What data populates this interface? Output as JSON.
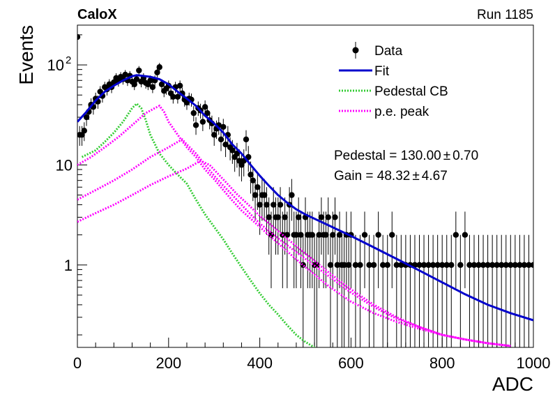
{
  "header": {
    "left_label": "CaloX",
    "right_label": "Run 1185"
  },
  "chart_data": {
    "type": "scatter",
    "title": "",
    "xlabel": "ADC",
    "ylabel": "Events",
    "xlim": [
      0,
      1000
    ],
    "ylim": [
      0.15,
      250
    ],
    "y_scale": "log",
    "x_ticks": [
      "0",
      "200",
      "400",
      "600",
      "800",
      "1000"
    ],
    "y_ticks": [
      {
        "value": 1,
        "label": "1"
      },
      {
        "value": 10,
        "label": "10"
      },
      {
        "value": 100,
        "label": "10",
        "sup": "2"
      }
    ],
    "grid": false,
    "legend_position": "top-right",
    "legend": [
      {
        "label": "Data",
        "style": "marker",
        "color": "#000000"
      },
      {
        "label": "Fit",
        "style": "line",
        "color": "#0000cc"
      },
      {
        "label": "Pedestal CB",
        "style": "dotted",
        "color": "#33cc33"
      },
      {
        "label": "p.e. peak",
        "style": "dotted",
        "color": "#ff00ff"
      }
    ],
    "annotations": [
      {
        "text": "Pedestal = 130.00",
        "pm": "±",
        "err": "0.70"
      },
      {
        "text": "Gain = 48.32",
        "pm": "±",
        "err": "4.67"
      }
    ],
    "series": [
      {
        "name": "Data",
        "kind": "points",
        "color": "#000000",
        "points": [
          [
            0,
            190
          ],
          [
            5,
            20
          ],
          [
            10,
            20
          ],
          [
            15,
            22
          ],
          [
            20,
            30
          ],
          [
            25,
            34
          ],
          [
            30,
            40
          ],
          [
            35,
            38
          ],
          [
            40,
            46
          ],
          [
            45,
            43
          ],
          [
            50,
            54
          ],
          [
            55,
            49
          ],
          [
            60,
            60
          ],
          [
            65,
            57
          ],
          [
            70,
            64
          ],
          [
            75,
            60
          ],
          [
            80,
            67
          ],
          [
            85,
            74
          ],
          [
            90,
            69
          ],
          [
            95,
            76
          ],
          [
            100,
            72
          ],
          [
            105,
            80
          ],
          [
            110,
            70
          ],
          [
            115,
            78
          ],
          [
            120,
            68
          ],
          [
            125,
            64
          ],
          [
            130,
            72
          ],
          [
            135,
            88
          ],
          [
            140,
            68
          ],
          [
            145,
            74
          ],
          [
            150,
            66
          ],
          [
            155,
            64
          ],
          [
            160,
            70
          ],
          [
            165,
            60
          ],
          [
            170,
            70
          ],
          [
            175,
            84
          ],
          [
            180,
            95
          ],
          [
            185,
            64
          ],
          [
            190,
            55
          ],
          [
            195,
            58
          ],
          [
            200,
            62
          ],
          [
            205,
            52
          ],
          [
            210,
            48
          ],
          [
            215,
            60
          ],
          [
            220,
            48
          ],
          [
            225,
            62
          ],
          [
            230,
            52
          ],
          [
            235,
            45
          ],
          [
            240,
            42
          ],
          [
            245,
            46
          ],
          [
            250,
            45
          ],
          [
            255,
            33
          ],
          [
            260,
            25
          ],
          [
            265,
            37
          ],
          [
            270,
            35
          ],
          [
            275,
            27
          ],
          [
            280,
            38
          ],
          [
            285,
            33
          ],
          [
            290,
            28
          ],
          [
            295,
            26
          ],
          [
            300,
            20
          ],
          [
            305,
            23
          ],
          [
            310,
            25
          ],
          [
            315,
            18
          ],
          [
            320,
            24
          ],
          [
            325,
            16
          ],
          [
            330,
            20
          ],
          [
            335,
            15
          ],
          [
            340,
            14
          ],
          [
            345,
            12
          ],
          [
            350,
            13
          ],
          [
            355,
            11
          ],
          [
            360,
            10
          ],
          [
            365,
            11
          ],
          [
            370,
            18
          ],
          [
            375,
            12
          ],
          [
            380,
            8
          ],
          [
            385,
            7
          ],
          [
            390,
            5
          ],
          [
            395,
            6
          ],
          [
            400,
            4
          ],
          [
            405,
            5
          ],
          [
            410,
            5
          ],
          [
            415,
            4
          ],
          [
            420,
            3
          ],
          [
            425,
            2
          ],
          [
            430,
            4
          ],
          [
            435,
            3
          ],
          [
            440,
            3
          ],
          [
            445,
            4
          ],
          [
            450,
            2
          ],
          [
            455,
            3
          ],
          [
            460,
            2
          ],
          [
            465,
            4
          ],
          [
            470,
            5
          ],
          [
            475,
            2
          ],
          [
            480,
            2
          ],
          [
            485,
            3
          ],
          [
            490,
            2
          ],
          [
            495,
            1
          ],
          [
            500,
            3
          ],
          [
            505,
            2
          ],
          [
            510,
            2
          ],
          [
            515,
            2
          ],
          [
            520,
            1
          ],
          [
            525,
            1
          ],
          [
            530,
            2
          ],
          [
            535,
            3
          ],
          [
            540,
            2
          ],
          [
            545,
            2
          ],
          [
            550,
            3
          ],
          [
            555,
            1
          ],
          [
            560,
            2
          ],
          [
            565,
            3
          ],
          [
            570,
            1
          ],
          [
            575,
            2
          ],
          [
            580,
            1
          ],
          [
            585,
            1
          ],
          [
            590,
            2
          ],
          [
            595,
            1
          ],
          [
            600,
            2
          ],
          [
            610,
            1
          ],
          [
            620,
            1
          ],
          [
            630,
            2
          ],
          [
            640,
            1
          ],
          [
            650,
            1
          ],
          [
            660,
            2
          ],
          [
            670,
            1
          ],
          [
            680,
            1
          ],
          [
            690,
            2
          ],
          [
            700,
            1
          ],
          [
            710,
            1
          ],
          [
            720,
            1
          ],
          [
            730,
            1
          ],
          [
            740,
            1
          ],
          [
            750,
            1
          ],
          [
            760,
            1
          ],
          [
            770,
            1
          ],
          [
            780,
            1
          ],
          [
            790,
            1
          ],
          [
            800,
            1
          ],
          [
            810,
            1
          ],
          [
            820,
            1
          ],
          [
            830,
            2
          ],
          [
            840,
            1
          ],
          [
            850,
            2
          ],
          [
            860,
            1
          ],
          [
            870,
            1
          ],
          [
            880,
            1
          ],
          [
            890,
            1
          ],
          [
            900,
            1
          ],
          [
            910,
            1
          ],
          [
            920,
            1
          ],
          [
            930,
            1
          ],
          [
            940,
            1
          ],
          [
            950,
            1
          ],
          [
            960,
            1
          ],
          [
            970,
            1
          ],
          [
            980,
            1
          ],
          [
            990,
            1
          ],
          [
            1000,
            1
          ]
        ]
      },
      {
        "name": "Fit",
        "kind": "line",
        "color": "#0000cc",
        "points": [
          [
            0,
            27
          ],
          [
            20,
            34
          ],
          [
            40,
            44
          ],
          [
            60,
            54
          ],
          [
            80,
            62
          ],
          [
            100,
            70
          ],
          [
            120,
            77
          ],
          [
            130,
            79
          ],
          [
            140,
            78
          ],
          [
            160,
            76
          ],
          [
            180,
            72
          ],
          [
            200,
            64
          ],
          [
            220,
            54
          ],
          [
            240,
            46
          ],
          [
            260,
            39
          ],
          [
            280,
            31
          ],
          [
            300,
            26
          ],
          [
            320,
            21
          ],
          [
            340,
            16
          ],
          [
            360,
            13
          ],
          [
            380,
            10
          ],
          [
            400,
            7.8
          ],
          [
            420,
            6.2
          ],
          [
            440,
            5.0
          ],
          [
            460,
            4.2
          ],
          [
            480,
            3.6
          ],
          [
            500,
            3.2
          ],
          [
            550,
            2.5
          ],
          [
            600,
            1.95
          ],
          [
            650,
            1.5
          ],
          [
            700,
            1.15
          ],
          [
            750,
            0.88
          ],
          [
            800,
            0.67
          ],
          [
            850,
            0.51
          ],
          [
            900,
            0.4
          ],
          [
            950,
            0.33
          ],
          [
            1000,
            0.28
          ]
        ]
      },
      {
        "name": "Pedestal CB",
        "kind": "dotted",
        "color": "#33cc33",
        "points": [
          [
            10,
            12
          ],
          [
            40,
            14
          ],
          [
            60,
            17
          ],
          [
            80,
            21
          ],
          [
            100,
            27
          ],
          [
            120,
            37
          ],
          [
            130,
            41
          ],
          [
            140,
            37
          ],
          [
            150,
            28
          ],
          [
            160,
            20
          ],
          [
            180,
            13
          ],
          [
            200,
            10
          ],
          [
            220,
            8
          ],
          [
            240,
            6.5
          ],
          [
            260,
            4.5
          ],
          [
            280,
            3.2
          ],
          [
            300,
            2.4
          ],
          [
            320,
            1.8
          ],
          [
            340,
            1.3
          ],
          [
            360,
            0.95
          ],
          [
            380,
            0.7
          ],
          [
            400,
            0.52
          ],
          [
            420,
            0.4
          ],
          [
            440,
            0.32
          ],
          [
            460,
            0.25
          ],
          [
            480,
            0.2
          ],
          [
            500,
            0.17
          ],
          [
            520,
            0.15
          ]
        ]
      },
      {
        "name": "p.e. peak 1",
        "kind": "dotted",
        "color": "#ff00ff",
        "points": [
          [
            0,
            10
          ],
          [
            30,
            12
          ],
          [
            60,
            15
          ],
          [
            90,
            19
          ],
          [
            120,
            25
          ],
          [
            150,
            33
          ],
          [
            170,
            37
          ],
          [
            180,
            39
          ],
          [
            190,
            34
          ],
          [
            200,
            27
          ],
          [
            220,
            20
          ],
          [
            240,
            15
          ],
          [
            260,
            12
          ],
          [
            280,
            9
          ],
          [
            300,
            7.2
          ],
          [
            320,
            5.6
          ],
          [
            340,
            4.4
          ],
          [
            360,
            3.5
          ],
          [
            380,
            2.9
          ],
          [
            400,
            2.4
          ],
          [
            450,
            1.5
          ],
          [
            500,
            0.95
          ],
          [
            550,
            0.62
          ],
          [
            600,
            0.43
          ],
          [
            650,
            0.33
          ],
          [
            700,
            0.27
          ],
          [
            750,
            0.23
          ],
          [
            800,
            0.2
          ],
          [
            850,
            0.18
          ],
          [
            900,
            0.165
          ],
          [
            950,
            0.155
          ]
        ]
      },
      {
        "name": "p.e. peak 2",
        "kind": "dotted",
        "color": "#ff00ff",
        "points": [
          [
            0,
            4.5
          ],
          [
            40,
            5.6
          ],
          [
            80,
            7
          ],
          [
            120,
            9
          ],
          [
            160,
            12
          ],
          [
            200,
            15
          ],
          [
            220,
            17
          ],
          [
            230,
            18
          ],
          [
            240,
            16
          ],
          [
            260,
            13
          ],
          [
            280,
            10
          ],
          [
            300,
            7.8
          ],
          [
            320,
            6.2
          ],
          [
            340,
            5.0
          ],
          [
            360,
            4.0
          ],
          [
            380,
            3.2
          ],
          [
            400,
            2.6
          ],
          [
            450,
            1.7
          ],
          [
            500,
            1.15
          ],
          [
            550,
            0.78
          ],
          [
            600,
            0.53
          ],
          [
            650,
            0.38
          ],
          [
            700,
            0.29
          ],
          [
            750,
            0.24
          ],
          [
            800,
            0.2
          ],
          [
            850,
            0.18
          ],
          [
            900,
            0.165
          ],
          [
            950,
            0.155
          ]
        ]
      },
      {
        "name": "p.e. peak 3",
        "kind": "dotted",
        "color": "#ff00ff",
        "points": [
          [
            0,
            2.7
          ],
          [
            40,
            3.3
          ],
          [
            80,
            4
          ],
          [
            120,
            5
          ],
          [
            160,
            6.3
          ],
          [
            200,
            7.7
          ],
          [
            240,
            9.2
          ],
          [
            270,
            11
          ],
          [
            290,
            10
          ],
          [
            310,
            8
          ],
          [
            330,
            6.4
          ],
          [
            350,
            5.1
          ],
          [
            370,
            4.2
          ],
          [
            400,
            3.1
          ],
          [
            450,
            2.0
          ],
          [
            500,
            1.3
          ],
          [
            550,
            0.85
          ],
          [
            600,
            0.57
          ],
          [
            650,
            0.4
          ],
          [
            700,
            0.3
          ],
          [
            750,
            0.24
          ],
          [
            800,
            0.2
          ],
          [
            850,
            0.18
          ],
          [
            900,
            0.165
          ],
          [
            950,
            0.155
          ]
        ]
      }
    ]
  }
}
